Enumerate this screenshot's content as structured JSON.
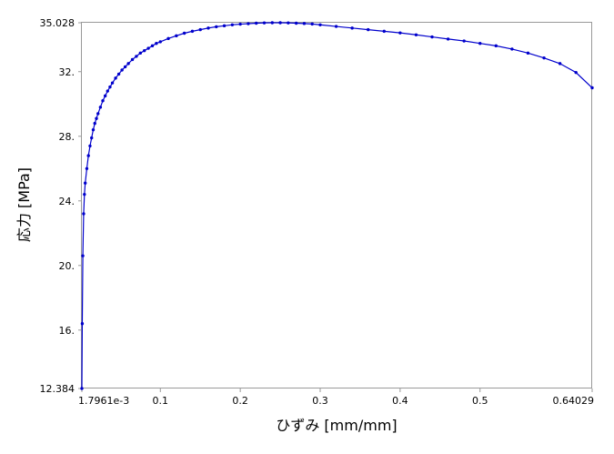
{
  "chart_data": {
    "type": "line",
    "xlabel": "ひずみ [mm/mm]",
    "ylabel": "応力 [MPa]",
    "xlim": [
      0.0017961,
      0.64029
    ],
    "ylim": [
      12.384,
      35.028
    ],
    "x_ticks": [
      {
        "value": 0.0017961,
        "label": "1.7961e-3"
      },
      {
        "value": 0.1,
        "label": "0.1"
      },
      {
        "value": 0.2,
        "label": "0.2"
      },
      {
        "value": 0.3,
        "label": "0.3"
      },
      {
        "value": 0.4,
        "label": "0.4"
      },
      {
        "value": 0.5,
        "label": "0.5"
      },
      {
        "value": 0.64029,
        "label": "0.64029"
      }
    ],
    "y_ticks": [
      {
        "value": 12.384,
        "label": "12.384"
      },
      {
        "value": 16,
        "label": "16."
      },
      {
        "value": 20,
        "label": "20."
      },
      {
        "value": 24,
        "label": "24."
      },
      {
        "value": 28,
        "label": "28."
      },
      {
        "value": 32,
        "label": "32."
      },
      {
        "value": 35.028,
        "label": "35.028"
      }
    ],
    "grid": false,
    "legend": "none",
    "colors": {
      "series": "#0000cc",
      "axis": "#999999"
    },
    "series": [
      {
        "x": [
          0.0018,
          0.0023,
          0.003,
          0.004,
          0.005,
          0.006,
          0.008,
          0.01,
          0.012,
          0.014,
          0.016,
          0.018,
          0.02,
          0.022,
          0.025,
          0.028,
          0.031,
          0.034,
          0.037,
          0.04,
          0.044,
          0.048,
          0.052,
          0.056,
          0.06,
          0.065,
          0.07,
          0.075,
          0.08,
          0.085,
          0.09,
          0.095,
          0.1,
          0.11,
          0.12,
          0.13,
          0.14,
          0.15,
          0.16,
          0.17,
          0.18,
          0.19,
          0.2,
          0.21,
          0.22,
          0.23,
          0.24,
          0.25,
          0.26,
          0.27,
          0.28,
          0.29,
          0.3,
          0.32,
          0.34,
          0.36,
          0.38,
          0.4,
          0.42,
          0.44,
          0.46,
          0.48,
          0.5,
          0.52,
          0.54,
          0.56,
          0.58,
          0.6,
          0.62,
          0.64029
        ],
        "y": [
          12.384,
          16.4,
          20.6,
          23.2,
          24.4,
          25.1,
          26.0,
          26.8,
          27.4,
          27.9,
          28.4,
          28.8,
          29.1,
          29.4,
          29.8,
          30.2,
          30.5,
          30.8,
          31.05,
          31.3,
          31.6,
          31.85,
          32.1,
          32.3,
          32.5,
          32.75,
          32.95,
          33.15,
          33.3,
          33.45,
          33.6,
          33.75,
          33.85,
          34.05,
          34.22,
          34.38,
          34.5,
          34.6,
          34.7,
          34.78,
          34.84,
          34.9,
          34.94,
          34.97,
          35.0,
          35.02,
          35.028,
          35.028,
          35.02,
          35.0,
          34.98,
          34.95,
          34.9,
          34.8,
          34.7,
          34.6,
          34.5,
          34.4,
          34.28,
          34.15,
          34.02,
          33.9,
          33.75,
          33.6,
          33.4,
          33.15,
          32.85,
          32.5,
          31.95,
          31.0
        ]
      }
    ]
  }
}
